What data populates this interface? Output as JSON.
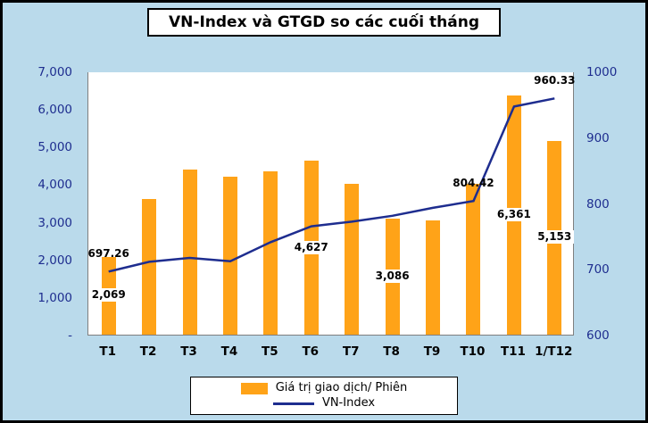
{
  "chart_data": {
    "type": "combo",
    "title": "VN-Index và GTGD so các cuối tháng",
    "categories": [
      "T1",
      "T2",
      "T3",
      "T4",
      "T5",
      "T6",
      "T7",
      "T8",
      "T9",
      "T10",
      "T11",
      "1/T12"
    ],
    "series": [
      {
        "name": "Giá trị giao dịch/ Phiên",
        "type": "bar",
        "axis": "left",
        "color": "#FFA318",
        "values": [
          2069,
          3600,
          4390,
          4200,
          4340,
          4627,
          4010,
          3086,
          3040,
          4020,
          6361,
          5153
        ],
        "labels": [
          "2,069",
          "",
          "",
          "",
          "",
          "4,627",
          "",
          "3,086",
          "",
          "",
          "6,361",
          "5,153"
        ]
      },
      {
        "name": "VN-Index",
        "type": "line",
        "axis": "right",
        "color": "#1E2D8F",
        "values": [
          697.26,
          712,
          718,
          713,
          742,
          766,
          773,
          782,
          794,
          804.42,
          948,
          960.33
        ],
        "labels": [
          "697.26",
          "",
          "",
          "",
          "",
          "",
          "",
          "",
          "",
          "804.42",
          "",
          "960.33"
        ]
      }
    ],
    "left_axis": {
      "min": 0,
      "max": 7000,
      "tick_labels": [
        "7,000",
        "6,000",
        "5,000",
        "4,000",
        "3,000",
        "2,000",
        "1,000",
        "-"
      ]
    },
    "right_axis": {
      "min": 600,
      "max": 1000,
      "tick_labels": [
        "1000",
        "900",
        "800",
        "700",
        "600"
      ]
    },
    "legend_position": "bottom",
    "grid": false,
    "colors": {
      "background": "#BADAEB",
      "plot_background": "#FFFFFF",
      "bar": "#FFA318",
      "line": "#1E2D8F",
      "tick_text": "#1E2D8F",
      "category_text": "#000000"
    }
  }
}
